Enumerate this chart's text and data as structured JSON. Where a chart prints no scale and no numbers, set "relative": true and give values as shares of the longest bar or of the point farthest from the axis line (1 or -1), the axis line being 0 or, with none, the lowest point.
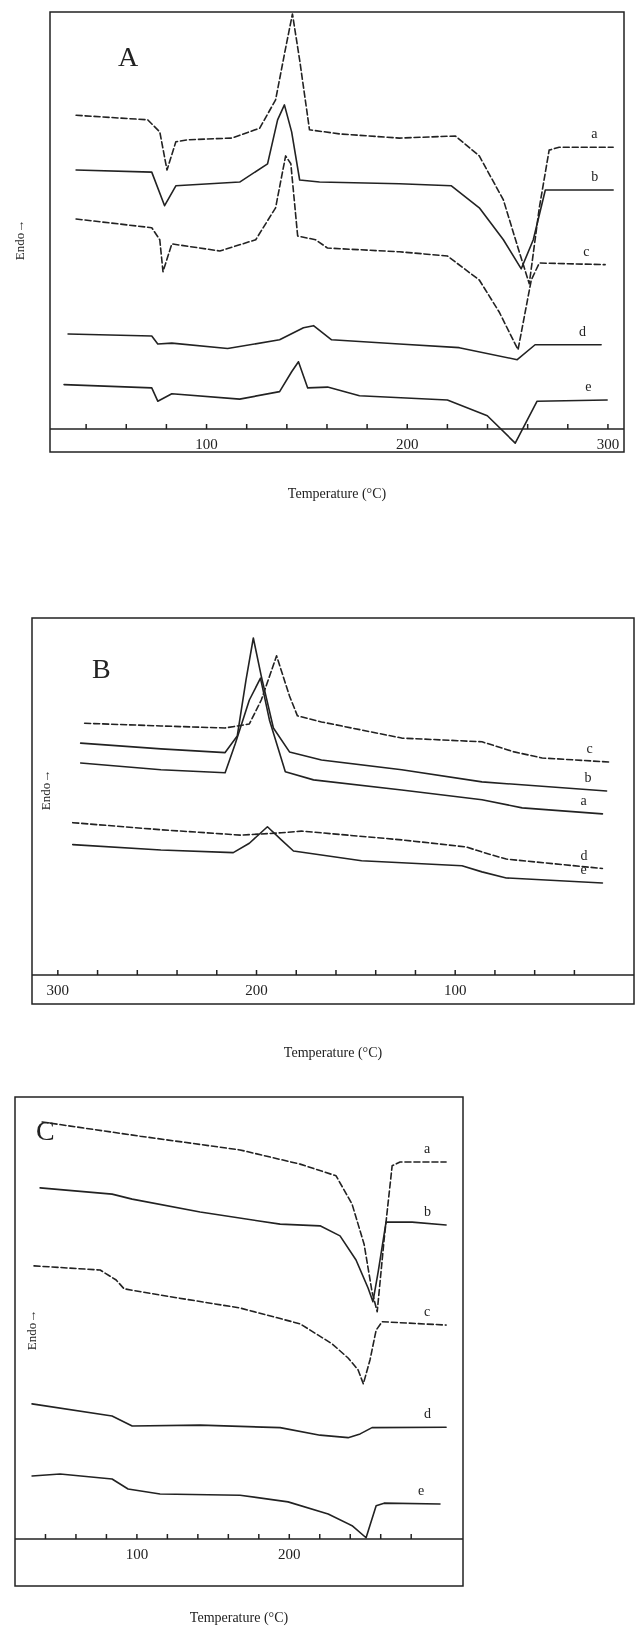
{
  "chart_data": [
    {
      "type": "line",
      "title": "A",
      "xlabel": "Temperature (°C)",
      "ylabel": "Endo→",
      "relative": true,
      "xlim": [
        22,
        308
      ],
      "xticks": [
        {
          "value": 40,
          "label": null
        },
        {
          "value": 60,
          "label": null
        },
        {
          "value": 80,
          "label": null
        },
        100,
        {
          "value": 120,
          "label": null
        },
        {
          "value": 140,
          "label": null
        },
        {
          "value": 160,
          "label": null
        },
        {
          "value": 180,
          "label": null
        },
        200,
        {
          "value": 220,
          "label": null
        },
        {
          "value": 240,
          "label": null
        },
        {
          "value": 260,
          "label": null
        },
        {
          "value": 280,
          "label": null
        },
        300
      ],
      "series": [
        {
          "name": "a",
          "color": "#222222",
          "line_style": "dashed",
          "x": [
            35,
            70.7,
            76.7,
            80.3,
            84.7,
            90.6,
            112.5,
            126.5,
            134.4,
            139.4,
            142.8,
            146.4,
            151.3,
            166.3,
            196.1,
            224,
            235.9,
            247.9,
            255.8,
            260.8,
            265.8,
            270.7,
            275.7,
            302.6
          ],
          "values": [
            0.756,
            0.745,
            0.716,
            0.624,
            0.692,
            0.697,
            0.701,
            0.725,
            0.793,
            0.918,
            1.0,
            0.889,
            0.721,
            0.711,
            0.701,
            0.706,
            0.658,
            0.552,
            0.427,
            0.35,
            0.533,
            0.672,
            0.679,
            0.679
          ]
        },
        {
          "name": "b",
          "color": "#222222",
          "line_style": "solid",
          "x": [
            35,
            72.7,
            79.1,
            84.7,
            116.5,
            130.4,
            135.4,
            138.8,
            142.4,
            146.4,
            156.3,
            196.1,
            222,
            235.9,
            247.9,
            256.8,
            262.8,
            268.8,
            302.6
          ],
          "values": [
            0.624,
            0.619,
            0.538,
            0.586,
            0.595,
            0.639,
            0.745,
            0.781,
            0.716,
            0.6,
            0.595,
            0.591,
            0.586,
            0.533,
            0.456,
            0.386,
            0.456,
            0.576,
            0.576
          ]
        },
        {
          "name": "c",
          "color": "#222222",
          "line_style": "dashed",
          "x": [
            35,
            72.7,
            76.7,
            78.3,
            82.7,
            106.6,
            124.5,
            134.4,
            139.4,
            142,
            145.4,
            154.3,
            160.3,
            196.1,
            220,
            235.9,
            245.8,
            255.2,
            261.8,
            265.8,
            298.6
          ],
          "values": [
            0.506,
            0.485,
            0.456,
            0.379,
            0.446,
            0.429,
            0.456,
            0.533,
            0.658,
            0.639,
            0.465,
            0.456,
            0.436,
            0.427,
            0.417,
            0.359,
            0.282,
            0.191,
            0.359,
            0.4,
            0.396
          ]
        },
        {
          "name": "d",
          "color": "#222222",
          "line_style": "solid",
          "x": [
            31,
            72.7,
            75.7,
            82.7,
            110.5,
            136.4,
            148.3,
            153.3,
            162.3,
            196.1,
            225.9,
            254.8,
            263.7,
            296.6
          ],
          "values": [
            0.229,
            0.224,
            0.205,
            0.207,
            0.194,
            0.215,
            0.244,
            0.249,
            0.215,
            0.205,
            0.196,
            0.167,
            0.203,
            0.203
          ]
        },
        {
          "name": "e",
          "color": "#222222",
          "line_style": "solid",
          "x": [
            29,
            72.7,
            75.7,
            82.7,
            116.5,
            136.4,
            142.4,
            145.8,
            150.4,
            160.3,
            176.2,
            220,
            239.9,
            253.8,
            264.7,
            299.6
          ],
          "values": [
            0.107,
            0.099,
            0.067,
            0.085,
            0.072,
            0.09,
            0.138,
            0.162,
            0.099,
            0.101,
            0.08,
            0.07,
            0.032,
            -0.034,
            0.067,
            0.07
          ]
        }
      ]
    },
    {
      "type": "line",
      "title": "B",
      "xlabel": "Temperature (°C)",
      "ylabel": "Endo→",
      "relative": true,
      "xlim": [
        313,
        10
      ],
      "xticks": [
        300,
        {
          "value": 280,
          "label": null
        },
        {
          "value": 260,
          "label": null
        },
        {
          "value": 240,
          "label": null
        },
        {
          "value": 220,
          "label": null
        },
        200,
        {
          "value": 180,
          "label": null
        },
        {
          "value": 160,
          "label": null
        },
        {
          "value": 140,
          "label": null
        },
        {
          "value": 120,
          "label": null
        },
        100,
        {
          "value": 80,
          "label": null
        },
        {
          "value": 60,
          "label": null
        },
        {
          "value": 40,
          "label": null
        }
      ],
      "series": [
        {
          "name": "c",
          "color": "#222222",
          "line_style": "dashed",
          "x": [
            286.5,
            248.1,
            215.8,
            203.6,
            197.6,
            189.9,
            183.4,
            179.4,
            167.3,
            126.9,
            86.5,
            70.3,
            56.2,
            22.8
          ],
          "values": [
            0.747,
            0.739,
            0.733,
            0.745,
            0.816,
            0.947,
            0.828,
            0.769,
            0.751,
            0.703,
            0.692,
            0.662,
            0.644,
            0.632
          ]
        },
        {
          "name": "b",
          "color": "#222222",
          "line_style": "solid",
          "x": [
            288.5,
            248.1,
            215.8,
            209.7,
            205.3,
            201.6,
            197.6,
            191.5,
            183.4,
            167.3,
            126.9,
            86.5,
            23.8
          ],
          "values": [
            0.688,
            0.671,
            0.66,
            0.709,
            0.875,
            1.0,
            0.887,
            0.733,
            0.662,
            0.638,
            0.609,
            0.573,
            0.546
          ]
        },
        {
          "name": "a",
          "color": "#222222",
          "line_style": "solid",
          "x": [
            288.5,
            248.1,
            215.8,
            210.7,
            203.6,
            198,
            193.5,
            185.5,
            171.3,
            126.9,
            86.5,
            66.3,
            25.9
          ],
          "values": [
            0.629,
            0.609,
            0.6,
            0.686,
            0.816,
            0.881,
            0.757,
            0.603,
            0.579,
            0.549,
            0.52,
            0.496,
            0.478
          ]
        },
        {
          "name": "d",
          "color": "#222222",
          "line_style": "dashed",
          "x": [
            292.5,
            248.1,
            207.7,
            187.5,
            177.4,
            126.9,
            94.5,
            86.5,
            74.3,
            25.9
          ],
          "values": [
            0.452,
            0.431,
            0.415,
            0.422,
            0.427,
            0.401,
            0.38,
            0.365,
            0.344,
            0.316
          ]
        },
        {
          "name": "e",
          "color": "#222222",
          "line_style": "solid",
          "x": [
            292.5,
            248.1,
            211.7,
            203.6,
            194.5,
            187.5,
            181.4,
            147.1,
            96.6,
            86.5,
            74.3,
            25.9
          ],
          "values": [
            0.387,
            0.371,
            0.363,
            0.391,
            0.44,
            0.401,
            0.368,
            0.339,
            0.324,
            0.306,
            0.288,
            0.273
          ]
        }
      ]
    },
    {
      "type": "line",
      "title": "C",
      "xlabel": "Temperature (°C)",
      "ylabel": "Endo→",
      "relative": true,
      "xlim": [
        20,
        314
      ],
      "xticks": [
        {
          "value": 40,
          "label": null
        },
        {
          "value": 60,
          "label": null
        },
        {
          "value": 80,
          "label": null
        },
        100,
        {
          "value": 120,
          "label": null
        },
        {
          "value": 140,
          "label": null
        },
        {
          "value": 160,
          "label": null
        },
        {
          "value": 180,
          "label": null
        },
        200,
        {
          "value": 220,
          "label": null
        },
        {
          "value": 240,
          "label": null
        },
        {
          "value": 260,
          "label": null
        },
        {
          "value": 280,
          "label": null
        }
      ],
      "series": [
        {
          "name": "a",
          "color": "#222222",
          "line_style": "dashed",
          "x": [
            37.8,
            102.1,
            167.7,
            207.1,
            230.7,
            241.2,
            249.1,
            254.3,
            257.7,
            262.2,
            267.5,
            272.7,
            302.9
          ],
          "values": [
            1.0,
            0.966,
            0.933,
            0.899,
            0.871,
            0.803,
            0.707,
            0.593,
            0.545,
            0.717,
            0.895,
            0.904,
            0.904
          ]
        },
        {
          "name": "b",
          "color": "#222222",
          "line_style": "solid",
          "x": [
            36.5,
            83.7,
            96.9,
            141.5,
            194,
            220.2,
            233.3,
            243.8,
            251.7,
            254.9,
            258.3,
            263.5,
            280.6,
            302.9
          ],
          "values": [
            0.842,
            0.827,
            0.815,
            0.784,
            0.755,
            0.751,
            0.727,
            0.669,
            0.602,
            0.569,
            0.64,
            0.76,
            0.76,
            0.753
          ]
        },
        {
          "name": "c",
          "color": "#222222",
          "line_style": "dashed",
          "x": [
            32.5,
            75.9,
            86.4,
            91.6,
            115.2,
            167.7,
            207.1,
            228.1,
            238.6,
            245.1,
            248.6,
            253,
            257,
            260.9,
            302.9
          ],
          "values": [
            0.655,
            0.645,
            0.621,
            0.6,
            0.585,
            0.554,
            0.516,
            0.468,
            0.434,
            0.406,
            0.372,
            0.43,
            0.501,
            0.521,
            0.513
          ]
        },
        {
          "name": "d",
          "color": "#222222",
          "line_style": "solid",
          "x": [
            31.2,
            83.7,
            96.9,
            141.5,
            194,
            220.2,
            238.6,
            246.5,
            254.3,
            302.9
          ],
          "values": [
            0.324,
            0.295,
            0.271,
            0.273,
            0.267,
            0.249,
            0.243,
            0.252,
            0.267,
            0.268
          ]
        },
        {
          "name": "e",
          "color": "#222222",
          "line_style": "solid",
          "x": [
            31.2,
            49.6,
            83.7,
            94.2,
            115.2,
            167.7,
            199.2,
            225.5,
            241.2,
            250.4,
            257,
            262.2,
            298.9
          ],
          "values": [
            0.151,
            0.156,
            0.144,
            0.12,
            0.108,
            0.105,
            0.089,
            0.06,
            0.032,
            0.003,
            0.08,
            0.086,
            0.084
          ]
        }
      ]
    }
  ]
}
